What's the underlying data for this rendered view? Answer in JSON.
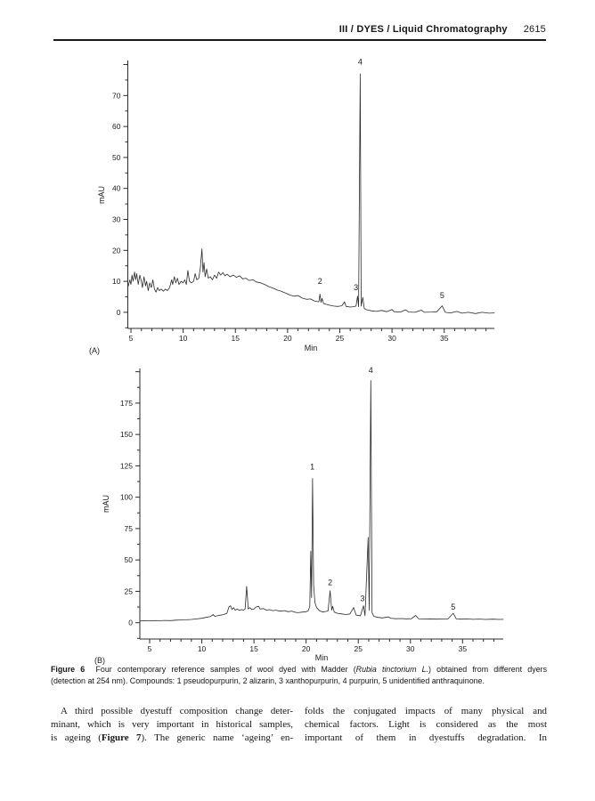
{
  "header": {
    "title": "III / DYES / Liquid Chromatography",
    "page_number": "2615"
  },
  "chart_data": [
    {
      "type": "line",
      "panel": "(A)",
      "title": "",
      "xlabel": "Min",
      "ylabel": "mAU",
      "xlim": [
        4.7,
        39.8
      ],
      "ylim": [
        -5.2,
        81.3
      ],
      "x_tick_step": 1,
      "x_label_step": 5,
      "x_label_min": 5,
      "x_label_max": 35,
      "y_tick_step": 5,
      "y_label_step": 10,
      "y_label_min": 0,
      "y_label_max": 70,
      "grid": "off",
      "peaks": [
        {
          "label": "2",
          "x": 23.1,
          "y": 9.2
        },
        {
          "label": "3",
          "x": 26.55,
          "y": 7.2
        },
        {
          "label": "4",
          "x": 26.95,
          "y": 80
        },
        {
          "label": "5",
          "x": 34.8,
          "y": 4.6
        }
      ],
      "points": [
        [
          4.75,
          8.5
        ],
        [
          4.9,
          10.5
        ],
        [
          5.0,
          9.0
        ],
        [
          5.1,
          12.0
        ],
        [
          5.2,
          10.0
        ],
        [
          5.35,
          13.0
        ],
        [
          5.45,
          10.5
        ],
        [
          5.55,
          12.5
        ],
        [
          5.7,
          9.0
        ],
        [
          5.85,
          12.0
        ],
        [
          6.0,
          10.0
        ],
        [
          6.1,
          8.0
        ],
        [
          6.25,
          11.5
        ],
        [
          6.4,
          8.5
        ],
        [
          6.5,
          10.0
        ],
        [
          6.65,
          7.0
        ],
        [
          6.8,
          9.5
        ],
        [
          6.95,
          8.0
        ],
        [
          7.1,
          10.5
        ],
        [
          7.25,
          7.5
        ],
        [
          7.4,
          6.5
        ],
        [
          7.55,
          8.0
        ],
        [
          7.7,
          7.0
        ],
        [
          7.9,
          7.5
        ],
        [
          8.1,
          6.8
        ],
        [
          8.3,
          7.5
        ],
        [
          8.5,
          7.0
        ],
        [
          8.7,
          8.0
        ],
        [
          8.9,
          10.5
        ],
        [
          9.0,
          9.0
        ],
        [
          9.15,
          11.5
        ],
        [
          9.3,
          9.5
        ],
        [
          9.45,
          11.0
        ],
        [
          9.6,
          9.0
        ],
        [
          9.8,
          10.0
        ],
        [
          10.0,
          9.5
        ],
        [
          10.15,
          10.5
        ],
        [
          10.3,
          9.0
        ],
        [
          10.45,
          13.5
        ],
        [
          10.6,
          10.0
        ],
        [
          10.8,
          9.5
        ],
        [
          11.0,
          10.0
        ],
        [
          11.15,
          12.5
        ],
        [
          11.3,
          10.5
        ],
        [
          11.5,
          11.0
        ],
        [
          11.65,
          14.5
        ],
        [
          11.8,
          20.5
        ],
        [
          11.9,
          13.0
        ],
        [
          12.0,
          16.0
        ],
        [
          12.1,
          11.5
        ],
        [
          12.25,
          14.0
        ],
        [
          12.4,
          11.0
        ],
        [
          12.6,
          11.5
        ],
        [
          12.8,
          10.5
        ],
        [
          13.0,
          12.0
        ],
        [
          13.2,
          11.0
        ],
        [
          13.4,
          13.0
        ],
        [
          13.6,
          12.0
        ],
        [
          13.8,
          12.8
        ],
        [
          14.0,
          11.8
        ],
        [
          14.2,
          12.3
        ],
        [
          14.5,
          11.5
        ],
        [
          14.8,
          12.0
        ],
        [
          15.1,
          11.3
        ],
        [
          15.4,
          11.8
        ],
        [
          15.7,
          10.8
        ],
        [
          16.0,
          11.0
        ],
        [
          16.3,
          10.3
        ],
        [
          16.7,
          10.5
        ],
        [
          17.0,
          9.8
        ],
        [
          17.4,
          9.5
        ],
        [
          17.8,
          9.0
        ],
        [
          18.2,
          8.3
        ],
        [
          18.6,
          7.8
        ],
        [
          19.0,
          7.2
        ],
        [
          19.4,
          6.8
        ],
        [
          19.8,
          6.2
        ],
        [
          20.2,
          5.6
        ],
        [
          20.6,
          5.2
        ],
        [
          21.0,
          5.4
        ],
        [
          21.4,
          4.6
        ],
        [
          21.8,
          4.2
        ],
        [
          22.2,
          4.3
        ],
        [
          22.6,
          3.6
        ],
        [
          23.0,
          3.4
        ],
        [
          23.1,
          5.9
        ],
        [
          23.2,
          3.2
        ],
        [
          23.3,
          4.5
        ],
        [
          23.45,
          2.8
        ],
        [
          23.7,
          2.6
        ],
        [
          24.0,
          2.3
        ],
        [
          24.4,
          2.0
        ],
        [
          24.8,
          1.9
        ],
        [
          25.2,
          2.1
        ],
        [
          25.45,
          3.4
        ],
        [
          25.6,
          1.9
        ],
        [
          26.0,
          1.7
        ],
        [
          26.3,
          1.8
        ],
        [
          26.55,
          2.0
        ],
        [
          26.7,
          5.2
        ],
        [
          26.8,
          1.8
        ],
        [
          26.95,
          77.0
        ],
        [
          27.05,
          2.0
        ],
        [
          27.2,
          4.8
        ],
        [
          27.35,
          1.2
        ],
        [
          27.6,
          0.8
        ],
        [
          28.0,
          0.5
        ],
        [
          28.5,
          0.3
        ],
        [
          29.0,
          0.6
        ],
        [
          29.5,
          0.2
        ],
        [
          30.0,
          0.9
        ],
        [
          30.2,
          0.2
        ],
        [
          30.8,
          0.1
        ],
        [
          31.3,
          0.8
        ],
        [
          31.6,
          0.1
        ],
        [
          32.2,
          0.0
        ],
        [
          32.8,
          0.7
        ],
        [
          33.1,
          0.0
        ],
        [
          33.8,
          0.1
        ],
        [
          34.3,
          0.2
        ],
        [
          34.8,
          2.1
        ],
        [
          35.1,
          0.0
        ],
        [
          35.6,
          -0.2
        ],
        [
          36.2,
          0.3
        ],
        [
          36.7,
          -0.3
        ],
        [
          37.3,
          0.0
        ],
        [
          38.0,
          -0.4
        ],
        [
          38.6,
          0.0
        ],
        [
          39.3,
          -0.3
        ],
        [
          39.8,
          -0.2
        ]
      ]
    },
    {
      "type": "line",
      "panel": "(B)",
      "title": "",
      "xlabel": "Min",
      "ylabel": "mAU",
      "xlim": [
        4.06,
        38.9
      ],
      "ylim": [
        -13,
        202.6
      ],
      "x_tick_step": 1,
      "x_label_step": 5,
      "x_label_min": 5,
      "x_label_max": 35,
      "y_tick_step": 12.5,
      "y_label_step": 25,
      "y_label_min": 0,
      "y_label_max": 175,
      "grid": "off",
      "peaks": [
        {
          "label": "1",
          "x": 20.6,
          "y": 122
        },
        {
          "label": "2",
          "x": 22.3,
          "y": 30
        },
        {
          "label": "3",
          "x": 25.4,
          "y": 17
        },
        {
          "label": "4",
          "x": 26.2,
          "y": 199
        },
        {
          "label": "5",
          "x": 34.1,
          "y": 10.5
        }
      ],
      "points": [
        [
          4.06,
          1.5
        ],
        [
          4.5,
          1.6
        ],
        [
          5.0,
          1.5
        ],
        [
          5.5,
          1.7
        ],
        [
          6.0,
          1.6
        ],
        [
          6.5,
          1.8
        ],
        [
          7.0,
          1.7
        ],
        [
          7.5,
          2.0
        ],
        [
          8.0,
          2.2
        ],
        [
          8.5,
          2.3
        ],
        [
          9.0,
          2.6
        ],
        [
          9.5,
          3.0
        ],
        [
          10.0,
          3.5
        ],
        [
          10.4,
          4.2
        ],
        [
          10.8,
          4.8
        ],
        [
          11.1,
          6.5
        ],
        [
          11.25,
          5.0
        ],
        [
          11.5,
          5.5
        ],
        [
          11.8,
          6.0
        ],
        [
          12.1,
          6.5
        ],
        [
          12.4,
          7.5
        ],
        [
          12.6,
          12.5
        ],
        [
          12.75,
          13.5
        ],
        [
          12.9,
          10.5
        ],
        [
          13.05,
          12.0
        ],
        [
          13.2,
          10.0
        ],
        [
          13.4,
          11.0
        ],
        [
          13.6,
          9.8
        ],
        [
          13.8,
          10.5
        ],
        [
          14.0,
          10.0
        ],
        [
          14.15,
          11.0
        ],
        [
          14.3,
          29.0
        ],
        [
          14.45,
          11.0
        ],
        [
          14.6,
          12.0
        ],
        [
          14.8,
          10.5
        ],
        [
          15.0,
          11.0
        ],
        [
          15.2,
          12.5
        ],
        [
          15.45,
          13.0
        ],
        [
          15.6,
          10.8
        ],
        [
          15.9,
          11.3
        ],
        [
          16.2,
          10.0
        ],
        [
          16.5,
          10.4
        ],
        [
          16.8,
          9.6
        ],
        [
          17.1,
          10.0
        ],
        [
          17.5,
          9.2
        ],
        [
          17.9,
          9.6
        ],
        [
          18.3,
          8.8
        ],
        [
          18.6,
          9.3
        ],
        [
          18.9,
          8.4
        ],
        [
          19.2,
          8.0
        ],
        [
          19.6,
          8.4
        ],
        [
          20.0,
          8.8
        ],
        [
          20.2,
          9.5
        ],
        [
          20.35,
          13.0
        ],
        [
          20.45,
          57.0
        ],
        [
          20.52,
          20.0
        ],
        [
          20.62,
          115.0
        ],
        [
          20.72,
          30.0
        ],
        [
          20.85,
          16.0
        ],
        [
          21.0,
          12.0
        ],
        [
          21.3,
          9.5
        ],
        [
          21.6,
          8.5
        ],
        [
          21.9,
          9.0
        ],
        [
          22.1,
          9.5
        ],
        [
          22.3,
          25.5
        ],
        [
          22.45,
          10.0
        ],
        [
          22.55,
          13.0
        ],
        [
          22.7,
          8.5
        ],
        [
          23.0,
          7.5
        ],
        [
          23.4,
          7.0
        ],
        [
          23.8,
          6.5
        ],
        [
          24.2,
          7.0
        ],
        [
          24.55,
          12.0
        ],
        [
          24.8,
          6.0
        ],
        [
          25.2,
          5.5
        ],
        [
          25.5,
          13.5
        ],
        [
          25.65,
          5.5
        ],
        [
          25.95,
          68.0
        ],
        [
          26.05,
          10.0
        ],
        [
          26.2,
          193.0
        ],
        [
          26.32,
          8.0
        ],
        [
          26.5,
          5.0
        ],
        [
          26.9,
          4.2
        ],
        [
          27.3,
          3.8
        ],
        [
          27.9,
          4.6
        ],
        [
          28.1,
          3.6
        ],
        [
          28.6,
          3.2
        ],
        [
          29.1,
          3.3
        ],
        [
          29.6,
          3.1
        ],
        [
          30.1,
          3.2
        ],
        [
          30.5,
          5.8
        ],
        [
          30.8,
          3.0
        ],
        [
          31.3,
          2.9
        ],
        [
          31.9,
          3.1
        ],
        [
          32.5,
          2.8
        ],
        [
          33.1,
          3.0
        ],
        [
          33.6,
          3.0
        ],
        [
          34.1,
          7.5
        ],
        [
          34.4,
          3.0
        ],
        [
          34.9,
          2.8
        ],
        [
          35.4,
          3.0
        ],
        [
          36.0,
          2.7
        ],
        [
          36.6,
          2.9
        ],
        [
          37.2,
          2.6
        ],
        [
          37.9,
          2.8
        ],
        [
          38.5,
          2.6
        ],
        [
          38.9,
          2.7
        ]
      ]
    }
  ],
  "caption": {
    "lines": [
      {
        "j": 1,
        "segs": [
          {
            "t": "Figure 6  ",
            "b": 1
          },
          {
            "t": "Four contemporary reference samples of wool dyed with Madder ("
          },
          {
            "t": "Rubia tinctorium L.",
            "i": 1
          },
          {
            "t": ") obtained from different dyers"
          }
        ]
      },
      {
        "j": 0,
        "segs": [
          {
            "t": "(detection at 254 nm). Compounds: 1 pseudopurpurin, 2 alizarin, 3 xanthopurpurin, 4 purpurin, 5 unidentified anthraquinone."
          }
        ]
      }
    ]
  },
  "body_text": {
    "columns": [
      {
        "lines": [
          {
            "j": 1,
            "ind": 1,
            "segs": [
              {
                "t": "A third possible dyestuff composition change deter-"
              }
            ]
          },
          {
            "j": 1,
            "segs": [
              {
                "t": "minant, which is very important in historical samples,"
              }
            ]
          },
          {
            "j": 1,
            "segs": [
              {
                "t": "is ageing ("
              },
              {
                "t": "Figure 7",
                "b": 1
              },
              {
                "t": "). The generic name ‘ageing’ en-"
              }
            ]
          }
        ]
      },
      {
        "lines": [
          {
            "j": 1,
            "segs": [
              {
                "t": "folds the conjugated impacts of many physical and"
              }
            ]
          },
          {
            "j": 1,
            "segs": [
              {
                "t": "chemical factors. Light is considered as the most"
              }
            ]
          },
          {
            "j": 1,
            "segs": [
              {
                "t": "important of them in dyestuffs degradation. In"
              }
            ]
          }
        ]
      }
    ]
  }
}
